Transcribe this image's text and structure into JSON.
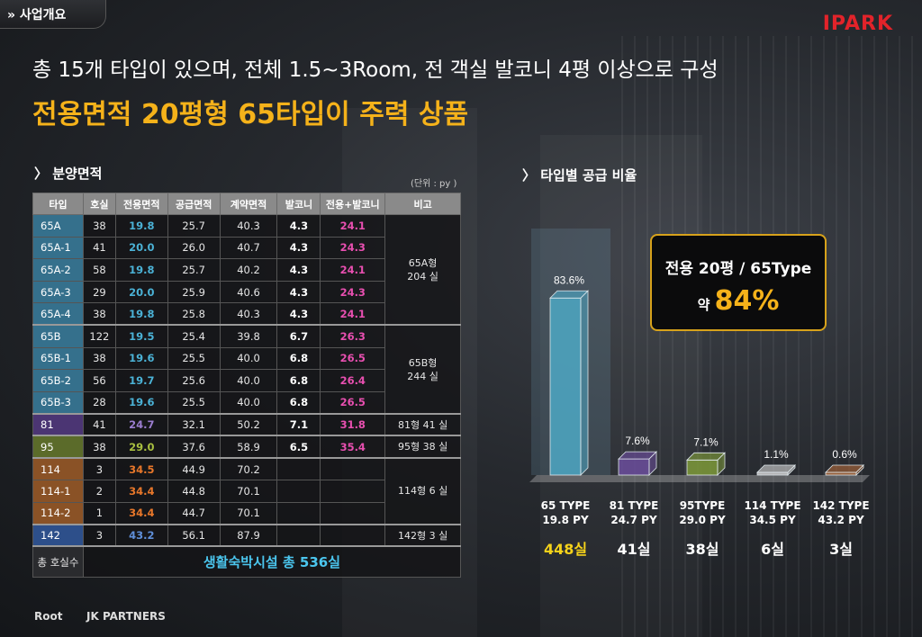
{
  "section": "» 사업개요",
  "logo": "IPARK",
  "headline": "총 15개 타입이 있으며, 전체 1.5~3Room, 전 객실 발코니 4평 이상으로 구성",
  "subhead": "전용면적 20평형 65타입이 주력 상품",
  "table_section": {
    "title": "〉 분양면적",
    "unit": "(단위 : py )",
    "headers": [
      "타입",
      "호실",
      "전용면적",
      "공급면적",
      "계약면적",
      "발코니",
      "전용+발코니",
      "비고"
    ],
    "rows": [
      {
        "type": "65A",
        "units": "38",
        "excl": "19.8",
        "supply": "25.7",
        "contract": "40.3",
        "balcony": "4.3",
        "sum": "24.1"
      },
      {
        "type": "65A-1",
        "units": "41",
        "excl": "20.0",
        "supply": "26.0",
        "contract": "40.7",
        "balcony": "4.3",
        "sum": "24.3"
      },
      {
        "type": "65A-2",
        "units": "58",
        "excl": "19.8",
        "supply": "25.7",
        "contract": "40.2",
        "balcony": "4.3",
        "sum": "24.1"
      },
      {
        "type": "65A-3",
        "units": "29",
        "excl": "20.0",
        "supply": "25.9",
        "contract": "40.6",
        "balcony": "4.3",
        "sum": "24.3"
      },
      {
        "type": "65A-4",
        "units": "38",
        "excl": "19.8",
        "supply": "25.8",
        "contract": "40.3",
        "balcony": "4.3",
        "sum": "24.1"
      },
      {
        "type": "65B",
        "units": "122",
        "excl": "19.5",
        "supply": "25.4",
        "contract": "39.8",
        "balcony": "6.7",
        "sum": "26.3"
      },
      {
        "type": "65B-1",
        "units": "38",
        "excl": "19.6",
        "supply": "25.5",
        "contract": "40.0",
        "balcony": "6.8",
        "sum": "26.5"
      },
      {
        "type": "65B-2",
        "units": "56",
        "excl": "19.7",
        "supply": "25.6",
        "contract": "40.0",
        "balcony": "6.8",
        "sum": "26.4"
      },
      {
        "type": "65B-3",
        "units": "28",
        "excl": "19.6",
        "supply": "25.5",
        "contract": "40.0",
        "balcony": "6.8",
        "sum": "26.5"
      },
      {
        "type": "81",
        "units": "41",
        "excl": "24.7",
        "supply": "32.1",
        "contract": "50.2",
        "balcony": "7.1",
        "sum": "31.8"
      },
      {
        "type": "95",
        "units": "38",
        "excl": "29.0",
        "supply": "37.6",
        "contract": "58.9",
        "balcony": "6.5",
        "sum": "35.4"
      },
      {
        "type": "114",
        "units": "3",
        "excl": "34.5",
        "supply": "44.9",
        "contract": "70.2",
        "balcony": "",
        "sum": ""
      },
      {
        "type": "114-1",
        "units": "2",
        "excl": "34.4",
        "supply": "44.8",
        "contract": "70.1",
        "balcony": "",
        "sum": ""
      },
      {
        "type": "114-2",
        "units": "1",
        "excl": "34.4",
        "supply": "44.7",
        "contract": "70.1",
        "balcony": "",
        "sum": ""
      },
      {
        "type": "142",
        "units": "3",
        "excl": "43.2",
        "supply": "56.1",
        "contract": "87.9",
        "balcony": "",
        "sum": ""
      }
    ],
    "notes": {
      "n65a_l1": "65A형",
      "n65a_l2": "204 실",
      "n65b_l1": "65B형",
      "n65b_l2": "244 실",
      "n81": "81형 41 실",
      "n95": "95형 38 실",
      "n114": "114형 6 실",
      "n142": "142형 3 실"
    },
    "total_label": "총 호실수",
    "total_value": "생활숙박시설 총 536실"
  },
  "chart_section": {
    "title": "〉 타입별 공급 비율",
    "callout": {
      "line1": "전용 20평 / 65Type",
      "prefix": "약 ",
      "big": "84%"
    }
  },
  "chart_data": {
    "type": "bar",
    "title": "",
    "categories": [
      "65 TYPE",
      "81 TYPE",
      "95TYPE",
      "114 TYPE",
      "142 TYPE"
    ],
    "sublabels": [
      "19.8 PY",
      "24.7 PY",
      "29.0 PY",
      "34.5 PY",
      "43.2 PY"
    ],
    "values": [
      83.6,
      7.6,
      7.1,
      1.1,
      0.6
    ],
    "value_labels": [
      "83.6%",
      "7.6%",
      "7.1%",
      "1.1%",
      "0.6%"
    ],
    "counts": [
      "448실",
      "41실",
      "38실",
      "6실",
      "3실"
    ],
    "colors": [
      "#4ea8c4",
      "#6b4d9c",
      "#7e9a3a",
      "#c9c9c9",
      "#a8663a"
    ],
    "count_colors": [
      "#f5d21a",
      "#ffffff",
      "#ffffff",
      "#ffffff",
      "#ffffff"
    ],
    "ylim": [
      0,
      100
    ]
  },
  "footer": {
    "root": "Root",
    "jk": "JK PARTNERS"
  }
}
